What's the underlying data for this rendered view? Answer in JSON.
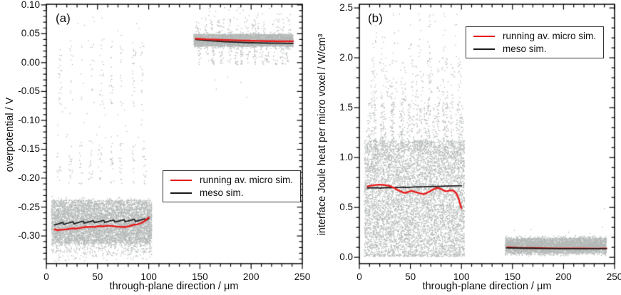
{
  "legend": {
    "entries": [
      {
        "label": "running av. micro sim.",
        "color": "#e81c1c"
      },
      {
        "label": "meso sim.",
        "color": "#1a1a1a"
      }
    ]
  },
  "colors": {
    "scatter": "#b3b8b6",
    "micro_line": "#e81c1c",
    "meso_line": "#1a1a1a",
    "frame": "#000000"
  },
  "chart_data": [
    {
      "type": "scatter",
      "panel_label": "(a)",
      "xlabel": "through-plane direction / μm",
      "ylabel": "overpotential / V",
      "xlim": [
        0,
        250
      ],
      "ylim": [
        -0.348,
        0.101
      ],
      "grid": false,
      "legend_position": "middle-right",
      "xticks": {
        "values": [
          0,
          50,
          100,
          150,
          200,
          250
        ],
        "labels": [
          "0",
          "50",
          "100",
          "150",
          "200",
          "250"
        ],
        "minor_step": 10
      },
      "yticks": {
        "values": [
          0.1,
          0.05,
          0.0,
          -0.05,
          -0.1,
          -0.15,
          -0.2,
          -0.25,
          -0.3
        ],
        "labels": [
          "0.10",
          "0.05",
          "0.00",
          "-0.05",
          "-0.10",
          "-0.15",
          "-0.20",
          "-0.25",
          "-0.30"
        ],
        "minor_step": 0.01
      },
      "scatter_clusters": [
        {
          "kind": "uniform",
          "n": 4200,
          "x": [
            5,
            103
          ],
          "y": [
            -0.313,
            -0.238
          ]
        },
        {
          "kind": "tri",
          "n": 2600,
          "x": [
            5,
            103
          ],
          "y_center": -0.2875,
          "y_spread": 0.058
        },
        {
          "kind": "columns",
          "n": 150,
          "x": [
            8,
            100
          ],
          "y": [
            -0.075,
            0.035
          ],
          "cols": 9
        },
        {
          "kind": "columns",
          "n": 150,
          "x": [
            8,
            100
          ],
          "y": [
            -0.21,
            -0.135
          ],
          "cols": 9
        },
        {
          "kind": "uniform",
          "n": 25,
          "x": [
            8,
            100
          ],
          "y": [
            -0.135,
            -0.075
          ]
        },
        {
          "kind": "uniform",
          "n": 15,
          "x": [
            10,
            95
          ],
          "y": [
            0.035,
            0.08
          ]
        },
        {
          "kind": "uniform",
          "n": 3400,
          "x": [
            144,
            241
          ],
          "y": [
            0.028,
            0.049
          ]
        },
        {
          "kind": "tri",
          "n": 800,
          "x": [
            144,
            241
          ],
          "y_center": 0.0385,
          "y_spread": 0.016
        },
        {
          "kind": "columns",
          "n": 150,
          "x": [
            147,
            240
          ],
          "y": [
            0.049,
            0.075
          ],
          "cols": 16
        },
        {
          "kind": "uniform",
          "n": 28,
          "x": [
            150,
            242
          ],
          "y": [
            0.075,
            0.097
          ]
        },
        {
          "kind": "columns",
          "n": 240,
          "x": [
            148,
            240
          ],
          "y": [
            -0.004,
            0.028
          ],
          "cols": 14
        },
        {
          "kind": "points",
          "pts": [
            [
              165,
              -0.03
            ],
            [
              190,
              -0.034
            ],
            [
              166,
              -0.046
            ],
            [
              196,
              -0.06
            ],
            [
              177,
              -0.025
            ]
          ]
        }
      ],
      "lines": [
        {
          "name": "meso sim. (anode)",
          "color": "#1a1a1a",
          "width": 1.8,
          "points": [
            [
              8,
              -0.281
            ],
            [
              12,
              -0.279
            ],
            [
              16,
              -0.2765
            ],
            [
              17,
              -0.28
            ],
            [
              21,
              -0.278
            ],
            [
              26,
              -0.2755
            ],
            [
              27,
              -0.279
            ],
            [
              31,
              -0.277
            ],
            [
              36,
              -0.2745
            ],
            [
              37,
              -0.278
            ],
            [
              41,
              -0.276
            ],
            [
              46,
              -0.2735
            ],
            [
              47,
              -0.277
            ],
            [
              51,
              -0.2755
            ],
            [
              56,
              -0.273
            ],
            [
              57,
              -0.2765
            ],
            [
              61,
              -0.2745
            ],
            [
              66,
              -0.2725
            ],
            [
              67,
              -0.276
            ],
            [
              71,
              -0.274
            ],
            [
              76,
              -0.272
            ],
            [
              77,
              -0.2755
            ],
            [
              81,
              -0.2735
            ],
            [
              86,
              -0.2715
            ],
            [
              87,
              -0.275
            ],
            [
              91,
              -0.273
            ],
            [
              96,
              -0.2705
            ],
            [
              97,
              -0.2735
            ],
            [
              100,
              -0.27
            ]
          ]
        },
        {
          "name": "running av. micro sim. (anode)",
          "color": "#e81c1c",
          "width": 2.4,
          "points": [
            [
              8,
              -0.2885
            ],
            [
              11,
              -0.29
            ],
            [
              14,
              -0.2895
            ],
            [
              17,
              -0.289
            ],
            [
              20,
              -0.2885
            ],
            [
              23,
              -0.2875
            ],
            [
              26,
              -0.287
            ],
            [
              29,
              -0.2875
            ],
            [
              32,
              -0.2865
            ],
            [
              35,
              -0.2855
            ],
            [
              38,
              -0.2845
            ],
            [
              41,
              -0.2845
            ],
            [
              44,
              -0.284
            ],
            [
              47,
              -0.2845
            ],
            [
              50,
              -0.2835
            ],
            [
              53,
              -0.283
            ],
            [
              56,
              -0.2835
            ],
            [
              59,
              -0.2825
            ],
            [
              62,
              -0.2825
            ],
            [
              65,
              -0.283
            ],
            [
              68,
              -0.284
            ],
            [
              71,
              -0.284
            ],
            [
              74,
              -0.2845
            ],
            [
              77,
              -0.2845
            ],
            [
              80,
              -0.2835
            ],
            [
              83,
              -0.282
            ],
            [
              86,
              -0.2805
            ],
            [
              89,
              -0.28
            ],
            [
              92,
              -0.278
            ],
            [
              94,
              -0.2765
            ],
            [
              96,
              -0.2745
            ],
            [
              98,
              -0.271
            ],
            [
              100,
              -0.268
            ]
          ]
        },
        {
          "name": "meso sim. (cathode)",
          "color": "#1a1a1a",
          "width": 1.8,
          "points": [
            [
              146,
              0.04
            ],
            [
              155,
              0.0385
            ],
            [
              165,
              0.0372
            ],
            [
              175,
              0.0362
            ],
            [
              185,
              0.0354
            ],
            [
              195,
              0.0347
            ],
            [
              205,
              0.0342
            ],
            [
              215,
              0.0338
            ],
            [
              225,
              0.0335
            ],
            [
              235,
              0.0333
            ],
            [
              241,
              0.0332
            ]
          ]
        },
        {
          "name": "running av. micro sim. (cathode)",
          "color": "#e81c1c",
          "width": 2.4,
          "points": [
            [
              146,
              0.0415
            ],
            [
              151,
              0.0409
            ],
            [
              156,
              0.0404
            ],
            [
              161,
              0.0401
            ],
            [
              166,
              0.0397
            ],
            [
              171,
              0.0394
            ],
            [
              176,
              0.0391
            ],
            [
              181,
              0.0388
            ],
            [
              186,
              0.0385
            ],
            [
              191,
              0.0383
            ],
            [
              196,
              0.038
            ],
            [
              201,
              0.0378
            ],
            [
              206,
              0.0376
            ],
            [
              211,
              0.0374
            ],
            [
              216,
              0.0372
            ],
            [
              221,
              0.0371
            ],
            [
              226,
              0.0369
            ],
            [
              231,
              0.0368
            ],
            [
              236,
              0.0368
            ],
            [
              241,
              0.0369
            ]
          ]
        }
      ]
    },
    {
      "type": "scatter",
      "panel_label": "(b)",
      "xlabel": "through-plane direction / μm",
      "ylabel": "interface Joule heat per micro voxel / W/cm³",
      "xlim": [
        0,
        250
      ],
      "ylim": [
        -0.064,
        2.536
      ],
      "grid": false,
      "legend_position": "top-right",
      "xticks": {
        "values": [
          0,
          50,
          100,
          150,
          200,
          250
        ],
        "labels": [
          "0",
          "50",
          "100",
          "150",
          "200",
          "250"
        ],
        "minor_step": 10
      },
      "yticks": {
        "values": [
          2.5,
          2.0,
          1.5,
          1.0,
          0.5,
          0.0
        ],
        "labels": [
          "2.5",
          "2.0",
          "1.5",
          "1.0",
          "0.5",
          "0.0"
        ],
        "minor_step": 0.1
      },
      "scatter_clusters": [
        {
          "kind": "uniform",
          "n": 6800,
          "x": [
            5,
            103
          ],
          "y": [
            0.03,
            1.17
          ]
        },
        {
          "kind": "columns",
          "n": 800,
          "x": [
            6,
            102
          ],
          "y": [
            1.05,
            1.55
          ],
          "cols": 22
        },
        {
          "kind": "columns",
          "n": 260,
          "x": [
            8,
            100
          ],
          "y": [
            1.55,
            2.0
          ],
          "cols": 18
        },
        {
          "kind": "columns",
          "n": 70,
          "x": [
            10,
            98
          ],
          "y": [
            2.0,
            2.45
          ],
          "cols": 10
        },
        {
          "kind": "uniform",
          "n": 250,
          "x": [
            5,
            103
          ],
          "y": [
            0.005,
            0.03
          ]
        },
        {
          "kind": "tri",
          "n": 3200,
          "x": [
            143,
            242
          ],
          "y_center": 0.115,
          "y_spread": 0.105
        },
        {
          "kind": "uniform",
          "n": 1500,
          "x": [
            143,
            242
          ],
          "y": [
            0.04,
            0.19
          ]
        },
        {
          "kind": "points",
          "pts": [
            [
              168,
              0.28
            ],
            [
              205,
              0.25
            ],
            [
              238,
              0.3
            ],
            [
              240,
              0.49
            ],
            [
              152,
              0.27
            ],
            [
              226,
              0.24
            ]
          ]
        }
      ],
      "lines": [
        {
          "name": "running av. micro sim. (cathode)",
          "color": "#e81c1c",
          "width": 2.4,
          "points": [
            [
              145,
              0.101
            ],
            [
              149,
              0.098
            ],
            [
              155,
              0.095
            ],
            [
              165,
              0.093
            ],
            [
              177,
              0.091
            ],
            [
              190,
              0.089
            ],
            [
              205,
              0.088
            ],
            [
              220,
              0.0875
            ],
            [
              232,
              0.087
            ],
            [
              242,
              0.088
            ]
          ]
        },
        {
          "name": "meso sim. (cathode)",
          "color": "#1a1a1a",
          "width": 1.8,
          "points": [
            [
              144,
              0.094
            ],
            [
              160,
              0.0915
            ],
            [
              180,
              0.089
            ],
            [
              200,
              0.087
            ],
            [
              220,
              0.0858
            ],
            [
              242,
              0.085
            ]
          ]
        },
        {
          "name": "meso sim. (anode)",
          "color": "#1a1a1a",
          "width": 1.8,
          "points": [
            [
              8,
              0.695
            ],
            [
              18,
              0.697
            ],
            [
              19,
              0.693
            ],
            [
              30,
              0.699
            ],
            [
              31,
              0.697
            ],
            [
              44,
              0.703
            ],
            [
              45,
              0.7
            ],
            [
              58,
              0.707
            ],
            [
              59,
              0.705
            ],
            [
              72,
              0.71
            ],
            [
              73,
              0.709
            ],
            [
              86,
              0.714
            ],
            [
              100,
              0.717
            ]
          ]
        },
        {
          "name": "running av. micro sim. (anode)",
          "color": "#e81c1c",
          "width": 2.4,
          "points": [
            [
              8,
              0.71
            ],
            [
              11,
              0.717
            ],
            [
              14,
              0.722
            ],
            [
              17,
              0.726
            ],
            [
              20,
              0.728
            ],
            [
              23,
              0.726
            ],
            [
              26,
              0.722
            ],
            [
              29,
              0.717
            ],
            [
              31,
              0.71
            ],
            [
              33,
              0.7
            ],
            [
              35,
              0.69
            ],
            [
              37,
              0.677
            ],
            [
              39,
              0.667
            ],
            [
              41,
              0.658
            ],
            [
              43,
              0.649
            ],
            [
              45,
              0.645
            ],
            [
              47,
              0.652
            ],
            [
              49,
              0.66
            ],
            [
              51,
              0.665
            ],
            [
              53,
              0.66
            ],
            [
              55,
              0.653
            ],
            [
              57,
              0.648
            ],
            [
              59,
              0.642
            ],
            [
              61,
              0.637
            ],
            [
              63,
              0.634
            ],
            [
              65,
              0.64
            ],
            [
              67,
              0.65
            ],
            [
              69,
              0.66
            ],
            [
              71,
              0.672
            ],
            [
              73,
              0.684
            ],
            [
              75,
              0.692
            ],
            [
              77,
              0.694
            ],
            [
              79,
              0.689
            ],
            [
              81,
              0.679
            ],
            [
              83,
              0.667
            ],
            [
              85,
              0.66
            ],
            [
              87,
              0.665
            ],
            [
              89,
              0.67
            ],
            [
              91,
              0.67
            ],
            [
              93,
              0.662
            ],
            [
              95,
              0.64
            ],
            [
              97,
              0.595
            ],
            [
              98,
              0.56
            ],
            [
              99,
              0.525
            ],
            [
              100,
              0.492
            ]
          ]
        }
      ]
    }
  ]
}
